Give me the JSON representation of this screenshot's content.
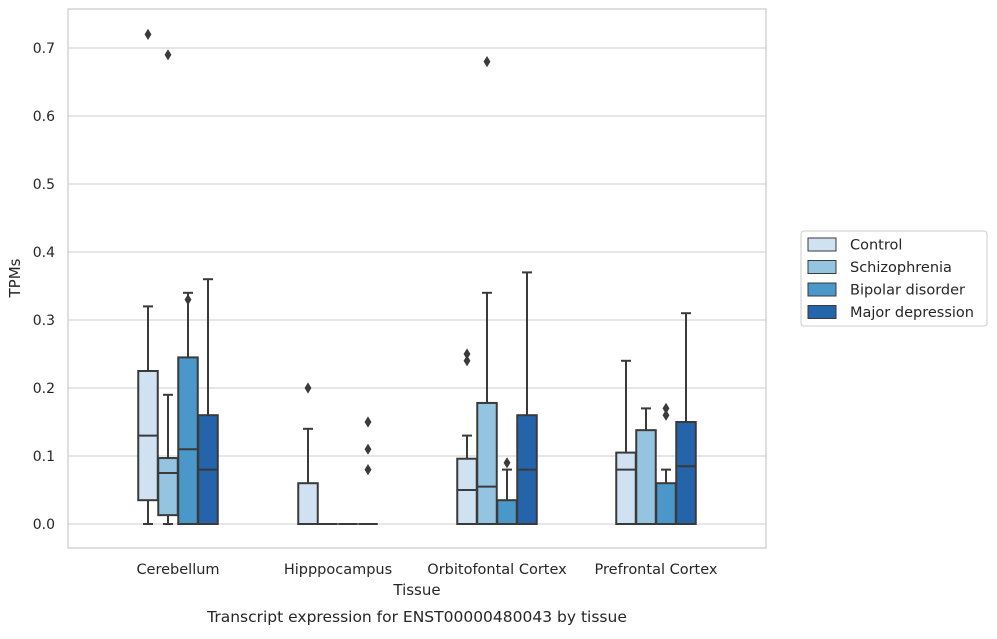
{
  "chart_data": {
    "type": "boxplot",
    "caption": "Transcript expression for ENST00000480043 by tissue",
    "xlabel": "Tissue",
    "ylabel": "TPMs",
    "ylim": [
      -0.035,
      0.757
    ],
    "yticks": [
      "0.0",
      "0.1",
      "0.2",
      "0.3",
      "0.4",
      "0.5",
      "0.6",
      "0.7"
    ],
    "ytick_values": [
      0.0,
      0.1,
      0.2,
      0.3,
      0.4,
      0.5,
      0.6,
      0.7
    ],
    "grid": "horizontal",
    "legend_position": "right",
    "categories": [
      "Cerebellum",
      "Hipppocampus",
      "Orbitofontal Cortex",
      "Prefrontal Cortex"
    ],
    "series": [
      {
        "name": "Control",
        "color": "#d0e1f2",
        "boxes": [
          {
            "whislo": 0.0,
            "q1": 0.035,
            "med": 0.13,
            "q3": 0.225,
            "whishi": 0.32,
            "fliers": [
              0.72
            ]
          },
          {
            "whislo": 0.0,
            "q1": 0.0,
            "med": 0.0,
            "q3": 0.06,
            "whishi": 0.14,
            "fliers": [
              0.2
            ]
          },
          {
            "whislo": 0.0,
            "q1": 0.0,
            "med": 0.05,
            "q3": 0.096,
            "whishi": 0.13,
            "fliers": [
              0.24,
              0.25
            ]
          },
          {
            "whislo": 0.0,
            "q1": 0.0,
            "med": 0.08,
            "q3": 0.105,
            "whishi": 0.24,
            "fliers": []
          }
        ]
      },
      {
        "name": "Schizophrenia",
        "color": "#94c4df",
        "boxes": [
          {
            "whislo": 0.0,
            "q1": 0.013,
            "med": 0.075,
            "q3": 0.097,
            "whishi": 0.19,
            "fliers": [
              0.69
            ]
          },
          {
            "whislo": 0.0,
            "q1": 0.0,
            "med": 0.0,
            "q3": 0.0,
            "whishi": 0.0,
            "fliers": []
          },
          {
            "whislo": 0.0,
            "q1": 0.0,
            "med": 0.055,
            "q3": 0.178,
            "whishi": 0.34,
            "fliers": [
              0.68
            ]
          },
          {
            "whislo": 0.0,
            "q1": 0.0,
            "med": 0.0,
            "q3": 0.138,
            "whishi": 0.17,
            "fliers": []
          }
        ]
      },
      {
        "name": "Bipolar disorder",
        "color": "#4a98c9",
        "boxes": [
          {
            "whislo": 0.0,
            "q1": 0.0,
            "med": 0.11,
            "q3": 0.245,
            "whishi": 0.34,
            "fliers": [
              0.33
            ]
          },
          {
            "whislo": 0.0,
            "q1": 0.0,
            "med": 0.0,
            "q3": 0.0,
            "whishi": 0.0,
            "fliers": []
          },
          {
            "whislo": 0.0,
            "q1": 0.0,
            "med": 0.0,
            "q3": 0.035,
            "whishi": 0.08,
            "fliers": [
              0.09
            ]
          },
          {
            "whislo": 0.0,
            "q1": 0.0,
            "med": 0.0,
            "q3": 0.06,
            "whishi": 0.08,
            "fliers": [
              0.16,
              0.17
            ]
          }
        ]
      },
      {
        "name": "Major depression",
        "color": "#2464ab",
        "boxes": [
          {
            "whislo": 0.0,
            "q1": 0.0,
            "med": 0.08,
            "q3": 0.16,
            "whishi": 0.36,
            "fliers": []
          },
          {
            "whislo": 0.0,
            "q1": 0.0,
            "med": 0.0,
            "q3": 0.0,
            "whishi": 0.0,
            "fliers": [
              0.08,
              0.11,
              0.15
            ]
          },
          {
            "whislo": 0.0,
            "q1": 0.0,
            "med": 0.08,
            "q3": 0.16,
            "whishi": 0.37,
            "fliers": []
          },
          {
            "whislo": 0.0,
            "q1": 0.0,
            "med": 0.085,
            "q3": 0.15,
            "whishi": 0.31,
            "fliers": []
          }
        ]
      }
    ],
    "style": {
      "grid_color": "#cccccc",
      "spine_color": "#cccccc",
      "line_color": "#3a3a3a",
      "text_color": "#262626"
    }
  }
}
